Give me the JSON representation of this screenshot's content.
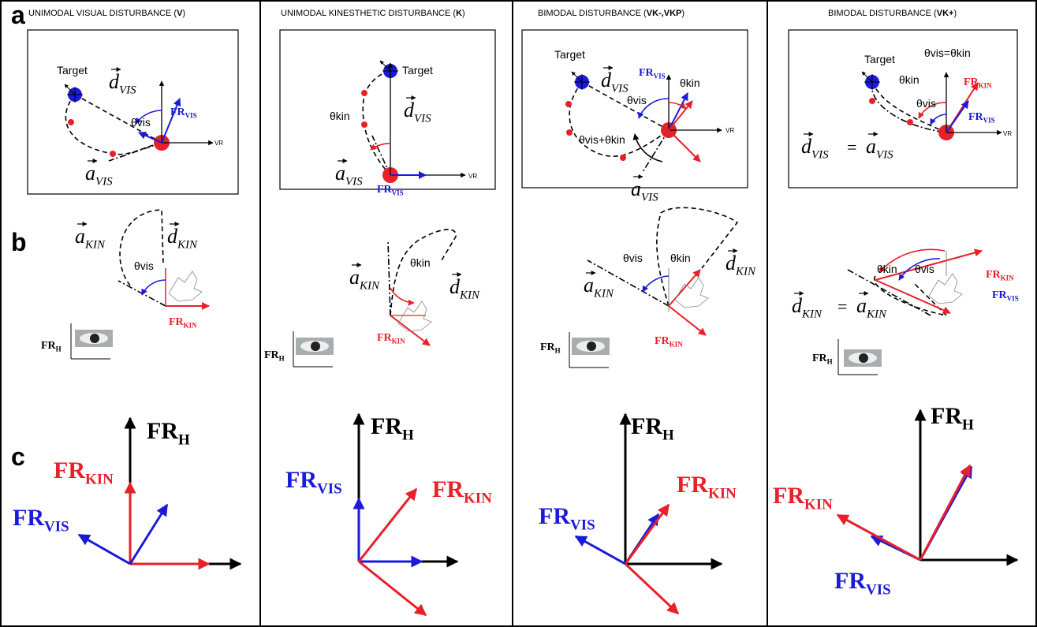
{
  "row_labels": {
    "a": "a",
    "b": "b",
    "c": "c"
  },
  "panels": [
    {
      "title": {
        "text": "UNIMODAL VISUAL DISTURBANCE (",
        "bold": "V",
        "close": ")"
      },
      "row_a": {
        "target": "Target",
        "d_vis": {
          "base": "d",
          "sub": "VIS"
        },
        "a_vis": {
          "base": "a",
          "sub": "VIS"
        },
        "fr_vis": {
          "base": "FR",
          "sub": "VIS"
        },
        "theta_vis": "θvis",
        "vr": "VR"
      },
      "row_b": {
        "a_kin": {
          "base": "a",
          "sub": "KIN"
        },
        "d_kin": {
          "base": "d",
          "sub": "KIN"
        },
        "theta_vis": "θvis",
        "fr_kin": {
          "base": "FR",
          "sub": "KIN"
        },
        "fr_h": {
          "base": "FR",
          "sub": "H"
        }
      },
      "row_c": {
        "fr_h": {
          "base": "FR",
          "sub": "H"
        },
        "fr_kin": {
          "base": "FR",
          "sub": "KIN"
        },
        "fr_vis": {
          "base": "FR",
          "sub": "VIS"
        }
      }
    },
    {
      "title": {
        "text": "UNIMODAL KINESTHETIC DISTURBANCE (",
        "bold": "K",
        "close": ")"
      },
      "row_a": {
        "target": "Target",
        "d_vis": {
          "base": "d",
          "sub": "VIS"
        },
        "a_vis": {
          "base": "a",
          "sub": "VIS"
        },
        "fr_vis": {
          "base": "FR",
          "sub": "VIS"
        },
        "theta_kin": "θkin",
        "vr": "VR"
      },
      "row_b": {
        "a_kin": {
          "base": "a",
          "sub": "KIN"
        },
        "d_kin": {
          "base": "d",
          "sub": "KIN"
        },
        "theta_kin": "θkin",
        "fr_kin": {
          "base": "FR",
          "sub": "KIN"
        },
        "fr_h": {
          "base": "FR",
          "sub": "H"
        }
      },
      "row_c": {
        "fr_h": {
          "base": "FR",
          "sub": "H"
        },
        "fr_kin": {
          "base": "FR",
          "sub": "KIN"
        },
        "fr_vis": {
          "base": "FR",
          "sub": "VIS"
        }
      }
    },
    {
      "title": {
        "text": "BIMODAL DISTURBANCE (",
        "bold": "VK-,VKP",
        "close": ")"
      },
      "row_a": {
        "target": "Target",
        "d_vis": {
          "base": "d",
          "sub": "VIS"
        },
        "a_vis": {
          "base": "a",
          "sub": "VIS"
        },
        "fr_vis": {
          "base": "FR",
          "sub": "VIS"
        },
        "theta_vis": "θvis",
        "theta_kin": "θkin",
        "theta_sum": "θvis+θkin",
        "vr": "VR"
      },
      "row_b": {
        "a_kin": {
          "base": "a",
          "sub": "KIN"
        },
        "d_kin": {
          "base": "d",
          "sub": "KIN"
        },
        "theta_vis": "θvis",
        "theta_kin": "θkin",
        "fr_kin": {
          "base": "FR",
          "sub": "KIN"
        },
        "fr_h": {
          "base": "FR",
          "sub": "H"
        }
      },
      "row_c": {
        "fr_h": {
          "base": "FR",
          "sub": "H"
        },
        "fr_kin": {
          "base": "FR",
          "sub": "KIN"
        },
        "fr_vis": {
          "base": "FR",
          "sub": "VIS"
        }
      }
    },
    {
      "title": {
        "text": "BIMODAL DISTURBANCE (",
        "bold": "VK+",
        "close": ")"
      },
      "row_a": {
        "target": "Target",
        "equality": "θvis=θkin",
        "theta_kin": "θkin",
        "theta_vis": "θvis",
        "fr_kin": {
          "base": "FR",
          "sub": "KIN"
        },
        "fr_vis": {
          "base": "FR",
          "sub": "VIS"
        },
        "vr": "VR",
        "equation": {
          "lhs": {
            "base": "d",
            "sub": "VIS"
          },
          "eq": "=",
          "rhs": {
            "base": "a",
            "sub": "VIS"
          }
        }
      },
      "row_b": {
        "theta_kin": "θkin",
        "theta_vis": "θvis",
        "fr_kin": {
          "base": "FR",
          "sub": "KIN"
        },
        "fr_vis": {
          "base": "FR",
          "sub": "VIS"
        },
        "equation": {
          "lhs": {
            "base": "d",
            "sub": "KIN"
          },
          "eq": "=",
          "rhs": {
            "base": "a",
            "sub": "KIN"
          }
        },
        "fr_h": {
          "base": "FR",
          "sub": "H"
        }
      },
      "row_c": {
        "fr_h": {
          "base": "FR",
          "sub": "H"
        },
        "fr_kin": {
          "base": "FR",
          "sub": "KIN"
        },
        "fr_vis": {
          "base": "FR",
          "sub": "VIS"
        }
      }
    }
  ]
}
